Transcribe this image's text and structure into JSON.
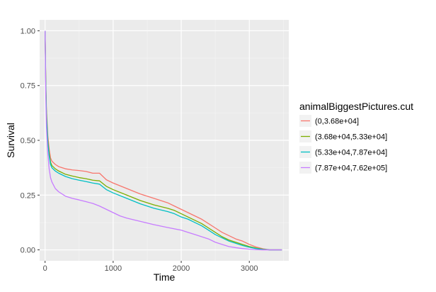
{
  "chart_data": {
    "type": "line",
    "title": "",
    "xlabel": "Time",
    "ylabel": "Survival",
    "xlim": [
      -80,
      3580
    ],
    "ylim": [
      -0.05,
      1.05
    ],
    "x_ticks": [
      0,
      1000,
      2000,
      3000
    ],
    "x_tick_labels": [
      "0",
      "1000",
      "2000",
      "3000"
    ],
    "y_ticks": [
      0,
      0.25,
      0.5,
      0.75,
      1.0
    ],
    "y_tick_labels": [
      "0.00",
      "0.25",
      "0.50",
      "0.75",
      "1.00"
    ],
    "grid": true,
    "legend": {
      "title": "animalBiggestPictures.cut",
      "placement": "right"
    },
    "series": [
      {
        "name": "(0,3.68e+04]",
        "color": "#F8766D",
        "points": [
          [
            0,
            1.0
          ],
          [
            10,
            0.77
          ],
          [
            20,
            0.64
          ],
          [
            40,
            0.52
          ],
          [
            60,
            0.46
          ],
          [
            80,
            0.42
          ],
          [
            100,
            0.405
          ],
          [
            150,
            0.39
          ],
          [
            200,
            0.38
          ],
          [
            300,
            0.37
          ],
          [
            400,
            0.365
          ],
          [
            500,
            0.362
          ],
          [
            600,
            0.358
          ],
          [
            700,
            0.35
          ],
          [
            800,
            0.35
          ],
          [
            900,
            0.32
          ],
          [
            1000,
            0.305
          ],
          [
            1200,
            0.28
          ],
          [
            1400,
            0.255
          ],
          [
            1600,
            0.235
          ],
          [
            1800,
            0.215
          ],
          [
            1900,
            0.2
          ],
          [
            2000,
            0.185
          ],
          [
            2100,
            0.17
          ],
          [
            2200,
            0.155
          ],
          [
            2300,
            0.14
          ],
          [
            2400,
            0.12
          ],
          [
            2500,
            0.1
          ],
          [
            2600,
            0.08
          ],
          [
            2700,
            0.065
          ],
          [
            2800,
            0.05
          ],
          [
            2900,
            0.04
          ],
          [
            3000,
            0.025
          ],
          [
            3100,
            0.013
          ],
          [
            3200,
            0.005
          ],
          [
            3300,
            0.0
          ],
          [
            3480,
            0.0
          ]
        ]
      },
      {
        "name": "(3.68e+04,5.33e+04]",
        "color": "#7CAE00",
        "points": [
          [
            0,
            1.0
          ],
          [
            10,
            0.76
          ],
          [
            20,
            0.62
          ],
          [
            40,
            0.5
          ],
          [
            60,
            0.44
          ],
          [
            80,
            0.4
          ],
          [
            100,
            0.385
          ],
          [
            150,
            0.37
          ],
          [
            200,
            0.36
          ],
          [
            300,
            0.345
          ],
          [
            400,
            0.337
          ],
          [
            500,
            0.33
          ],
          [
            600,
            0.325
          ],
          [
            700,
            0.318
          ],
          [
            800,
            0.315
          ],
          [
            900,
            0.29
          ],
          [
            1000,
            0.275
          ],
          [
            1200,
            0.25
          ],
          [
            1400,
            0.225
          ],
          [
            1600,
            0.205
          ],
          [
            1800,
            0.19
          ],
          [
            1900,
            0.18
          ],
          [
            2000,
            0.165
          ],
          [
            2100,
            0.15
          ],
          [
            2200,
            0.135
          ],
          [
            2300,
            0.12
          ],
          [
            2400,
            0.1
          ],
          [
            2500,
            0.08
          ],
          [
            2600,
            0.06
          ],
          [
            2700,
            0.045
          ],
          [
            2800,
            0.035
          ],
          [
            2900,
            0.025
          ],
          [
            3000,
            0.015
          ],
          [
            3100,
            0.008
          ],
          [
            3200,
            0.003
          ],
          [
            3300,
            0.0
          ],
          [
            3480,
            0.0
          ]
        ]
      },
      {
        "name": "(5.33e+04,7.87e+04]",
        "color": "#00BFC4",
        "points": [
          [
            0,
            1.0
          ],
          [
            10,
            0.75
          ],
          [
            20,
            0.61
          ],
          [
            40,
            0.49
          ],
          [
            60,
            0.43
          ],
          [
            80,
            0.39
          ],
          [
            100,
            0.375
          ],
          [
            150,
            0.36
          ],
          [
            200,
            0.35
          ],
          [
            300,
            0.335
          ],
          [
            400,
            0.325
          ],
          [
            500,
            0.318
          ],
          [
            600,
            0.312
          ],
          [
            700,
            0.305
          ],
          [
            800,
            0.3
          ],
          [
            900,
            0.275
          ],
          [
            1000,
            0.26
          ],
          [
            1200,
            0.235
          ],
          [
            1400,
            0.21
          ],
          [
            1600,
            0.19
          ],
          [
            1800,
            0.175
          ],
          [
            1900,
            0.165
          ],
          [
            2000,
            0.15
          ],
          [
            2100,
            0.14
          ],
          [
            2200,
            0.125
          ],
          [
            2300,
            0.11
          ],
          [
            2400,
            0.09
          ],
          [
            2500,
            0.07
          ],
          [
            2600,
            0.055
          ],
          [
            2700,
            0.04
          ],
          [
            2800,
            0.03
          ],
          [
            2900,
            0.02
          ],
          [
            3000,
            0.012
          ],
          [
            3100,
            0.006
          ],
          [
            3200,
            0.002
          ],
          [
            3300,
            0.0
          ],
          [
            3480,
            0.0
          ]
        ]
      },
      {
        "name": "(7.87e+04,7.62e+05]",
        "color": "#C77CFF",
        "points": [
          [
            0,
            1.0
          ],
          [
            10,
            0.7
          ],
          [
            20,
            0.56
          ],
          [
            40,
            0.44
          ],
          [
            60,
            0.37
          ],
          [
            80,
            0.33
          ],
          [
            100,
            0.31
          ],
          [
            150,
            0.28
          ],
          [
            200,
            0.265
          ],
          [
            300,
            0.245
          ],
          [
            400,
            0.235
          ],
          [
            500,
            0.228
          ],
          [
            600,
            0.22
          ],
          [
            700,
            0.212
          ],
          [
            800,
            0.2
          ],
          [
            900,
            0.185
          ],
          [
            1000,
            0.17
          ],
          [
            1100,
            0.155
          ],
          [
            1200,
            0.145
          ],
          [
            1400,
            0.13
          ],
          [
            1600,
            0.115
          ],
          [
            1800,
            0.102
          ],
          [
            2000,
            0.09
          ],
          [
            2100,
            0.08
          ],
          [
            2200,
            0.07
          ],
          [
            2300,
            0.06
          ],
          [
            2400,
            0.05
          ],
          [
            2500,
            0.035
          ],
          [
            2600,
            0.025
          ],
          [
            2700,
            0.015
          ],
          [
            2800,
            0.01
          ],
          [
            2900,
            0.006
          ],
          [
            3000,
            0.003
          ],
          [
            3100,
            0.001
          ],
          [
            3200,
            0.0
          ],
          [
            3480,
            0.0
          ]
        ]
      }
    ]
  }
}
